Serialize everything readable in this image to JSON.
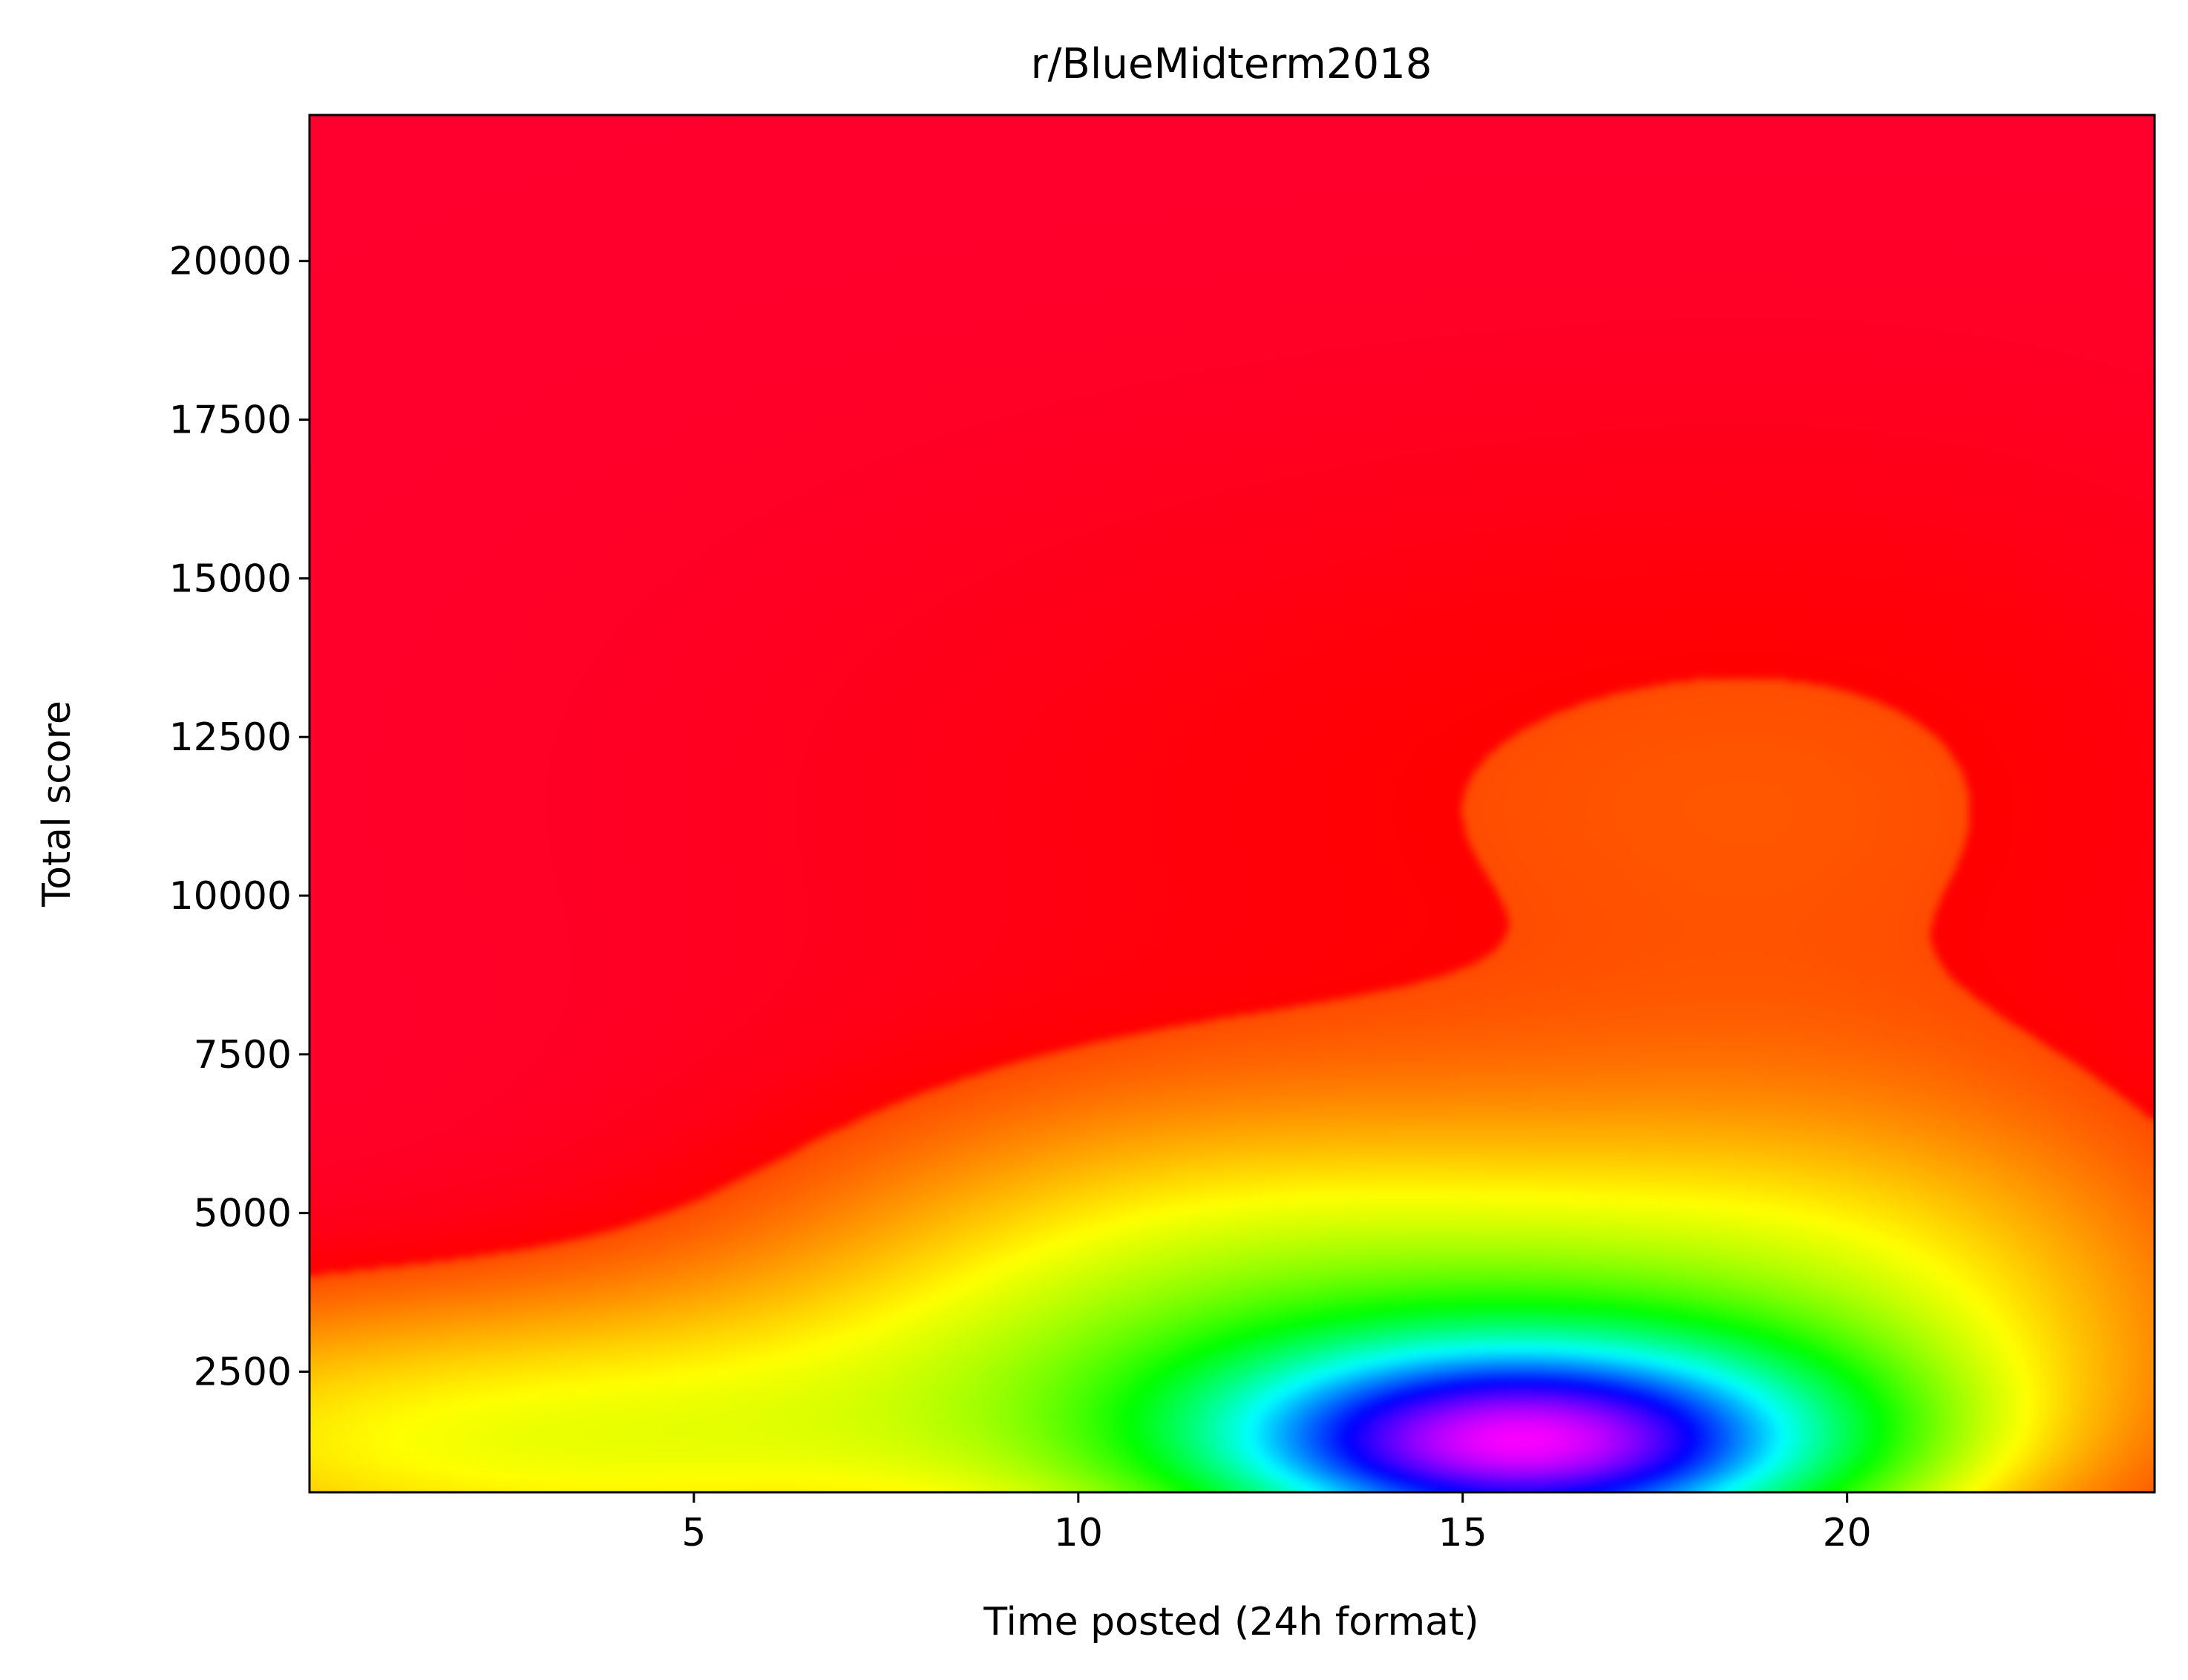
{
  "chart_data": {
    "type": "heatmap",
    "title": "r/BlueMidterm2018",
    "xlabel": "Time posted (24h format)",
    "ylabel": "Total score",
    "xlim": [
      0,
      24
    ],
    "ylim": [
      600,
      22300
    ],
    "xticks": [
      5,
      10,
      15,
      20
    ],
    "yticks": [
      2500,
      5000,
      7500,
      10000,
      12500,
      15000,
      17500,
      20000
    ],
    "colormap": "gist_rainbow (red = low density, magenta = high density)",
    "grid": false,
    "legend": "none",
    "density_peaks": [
      {
        "x": 15.8,
        "y": 1300,
        "amp": 1.0,
        "sx": 2.9,
        "sy": 1150
      },
      {
        "x": 13.5,
        "y": 2200,
        "amp": 0.22,
        "sx": 4.5,
        "sy": 2100
      },
      {
        "x": 19.5,
        "y": 2300,
        "amp": 0.18,
        "sx": 3.8,
        "sy": 2100
      },
      {
        "x": 2.5,
        "y": 1400,
        "amp": 0.27,
        "sx": 5.5,
        "sy": 1700
      },
      {
        "x": 11.5,
        "y": 4400,
        "amp": 0.16,
        "sx": 4.0,
        "sy": 2000
      },
      {
        "x": 20.0,
        "y": 4800,
        "amp": 0.1,
        "sx": 3.6,
        "sy": 2000
      },
      {
        "x": 14.0,
        "y": 11500,
        "amp": 0.06,
        "sx": 6.5,
        "sy": 4000
      },
      {
        "x": 21.0,
        "y": 11500,
        "amp": 0.05,
        "sx": 4.5,
        "sy": 4000
      }
    ]
  }
}
